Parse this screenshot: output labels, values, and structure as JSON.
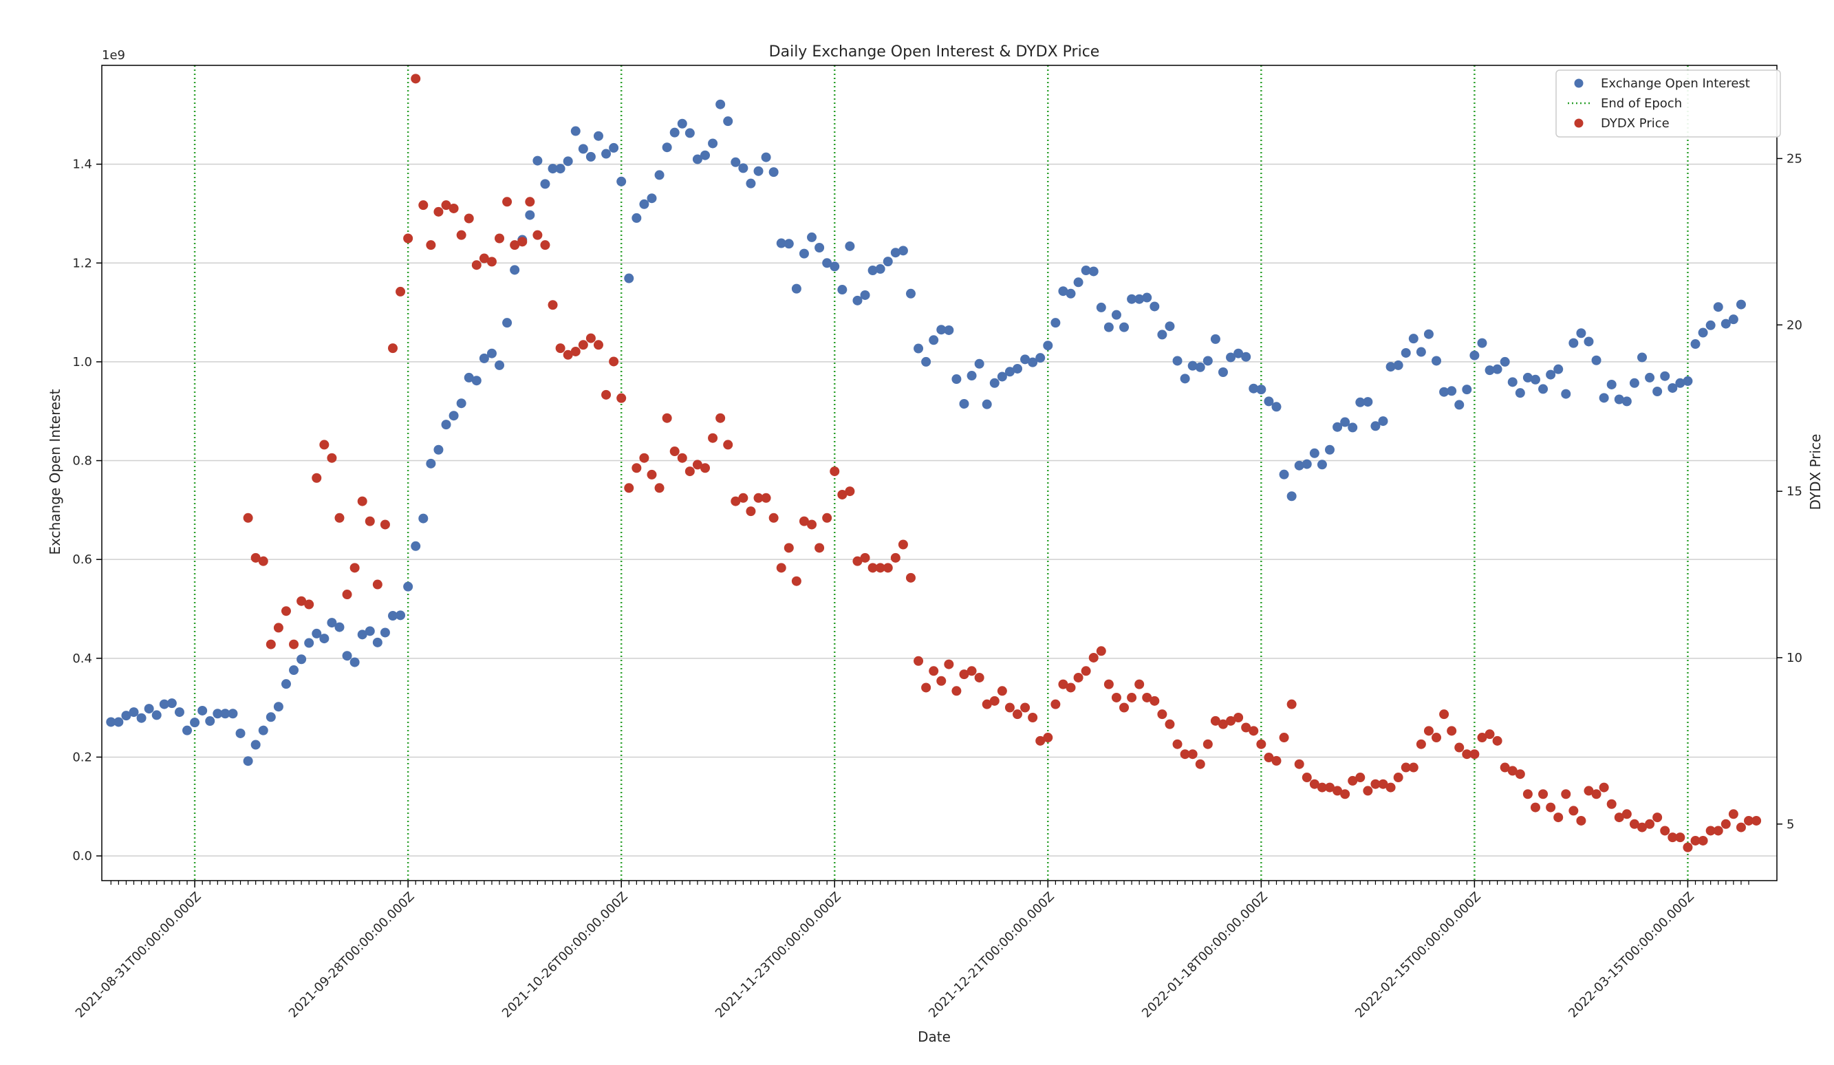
{
  "chart_data": {
    "type": "scatter",
    "title": "Daily Exchange Open Interest & DYDX Price",
    "xlabel": "Date",
    "ylabel_left": "Exchange Open Interest",
    "ylabel_right": "DYDX Price",
    "y_offset_label": "1e9",
    "x_start": "2021-08-20",
    "x_end": "2022-03-23",
    "x_day_range": [
      -1.2,
      218.7
    ],
    "left_ylim": [
      -0.05,
      1.6
    ],
    "right_ylim": [
      3.3,
      27.8
    ],
    "left_ticks": [
      "0.0",
      "0.2",
      "0.4",
      "0.6",
      "0.8",
      "1.0",
      "1.2",
      "1.4"
    ],
    "right_ticks": [
      "5",
      "10",
      "15",
      "20",
      "25"
    ],
    "epoch_dates": [
      "2021-08-31T00:00:00.000Z",
      "2021-09-28T00:00:00.000Z",
      "2021-10-26T00:00:00.000Z",
      "2021-11-23T00:00:00.000Z",
      "2021-12-21T00:00:00.000Z",
      "2022-01-18T00:00:00.000Z",
      "2022-02-15T00:00:00.000Z",
      "2022-03-15T00:00:00.000Z"
    ],
    "grid": "horizontal",
    "legend_position": "top-right",
    "colors": {
      "open_interest": "#4c72b0",
      "epoch": "#2ca02c",
      "price": "#c0392b"
    },
    "legend": [
      {
        "label": "Exchange Open Interest",
        "kind": "marker",
        "color": "#4c72b0"
      },
      {
        "label": "End of Epoch",
        "kind": "dotted-line",
        "color": "#2ca02c"
      },
      {
        "label": "DYDX Price",
        "kind": "marker",
        "color": "#c0392b"
      }
    ],
    "series": [
      {
        "name": "Exchange Open Interest",
        "axis": "left",
        "start_date": "2021-08-20",
        "values": [
          0.271,
          0.271,
          0.284,
          0.291,
          0.279,
          0.298,
          0.285,
          0.307,
          0.309,
          0.291,
          0.254,
          0.27,
          0.294,
          0.273,
          0.288,
          0.288,
          0.288,
          0.248,
          0.192,
          0.225,
          0.254,
          0.281,
          0.302,
          0.348,
          0.376,
          0.398,
          0.431,
          0.45,
          0.44,
          0.472,
          0.463,
          0.405,
          0.392,
          0.448,
          0.455,
          0.432,
          0.452,
          0.486,
          0.487,
          0.545,
          0.627,
          0.683,
          0.794,
          0.822,
          0.873,
          0.891,
          0.916,
          0.968,
          0.962,
          1.007,
          1.017,
          0.993,
          1.079,
          1.186,
          1.247,
          1.297,
          1.407,
          1.36,
          1.391,
          1.391,
          1.406,
          1.467,
          1.431,
          1.415,
          1.457,
          1.421,
          1.433,
          1.365,
          1.169,
          1.291,
          1.319,
          1.331,
          1.378,
          1.434,
          1.464,
          1.482,
          1.463,
          1.41,
          1.418,
          1.442,
          1.521,
          1.487,
          1.404,
          1.392,
          1.361,
          1.386,
          1.414,
          1.384,
          1.24,
          1.239,
          1.148,
          1.219,
          1.252,
          1.231,
          1.2,
          1.193,
          1.146,
          1.234,
          1.124,
          1.135,
          1.185,
          1.188,
          1.203,
          1.221,
          1.225,
          1.138,
          1.027,
          1.0,
          1.044,
          1.065,
          1.064,
          0.965,
          0.915,
          0.972,
          0.996,
          0.914,
          0.957,
          0.97,
          0.98,
          0.986,
          1.005,
          0.999,
          1.008,
          1.033,
          1.079,
          1.143,
          1.138,
          1.161,
          1.185,
          1.183,
          1.11,
          1.07,
          1.095,
          1.07,
          1.127,
          1.127,
          1.13,
          1.112,
          1.055,
          1.072,
          1.002,
          0.966,
          0.992,
          0.989,
          1.002,
          1.046,
          0.979,
          1.009,
          1.017,
          1.01,
          0.946,
          0.944,
          0.92,
          0.909,
          0.772,
          0.728,
          0.79,
          0.793,
          0.815,
          0.792,
          0.822,
          0.868,
          0.878,
          0.867,
          0.918,
          0.919,
          0.87,
          0.88,
          0.99,
          0.993,
          1.018,
          1.047,
          1.02,
          1.056,
          1.002,
          0.939,
          0.941,
          0.913,
          0.944,
          1.013,
          1.038,
          0.983,
          0.985,
          1.0,
          0.959,
          0.937,
          0.968,
          0.964,
          0.945,
          0.974,
          0.985,
          0.935,
          1.038,
          1.058,
          1.041,
          1.003,
          0.927,
          0.954,
          0.924,
          0.92,
          0.957,
          1.009,
          0.968,
          0.94,
          0.971,
          0.947,
          0.957,
          0.961,
          1.036,
          1.059,
          1.074,
          1.111,
          1.077,
          1.086,
          1.116
        ]
      },
      {
        "name": "DYDX Price",
        "axis": "right",
        "start_date": "2021-09-07",
        "values": [
          14.2,
          13.0,
          12.9,
          10.4,
          10.9,
          11.4,
          10.4,
          11.7,
          11.6,
          15.4,
          16.4,
          16.0,
          14.2,
          11.9,
          12.7,
          14.7,
          14.1,
          12.2,
          14.0,
          19.3,
          21.0,
          22.6,
          27.4,
          23.6,
          22.4,
          23.4,
          23.6,
          23.5,
          22.7,
          23.2,
          21.8,
          22.0,
          21.9,
          22.6,
          23.7,
          22.4,
          22.5,
          23.7,
          22.7,
          22.4,
          20.6,
          19.3,
          19.1,
          19.2,
          19.4,
          19.6,
          19.4,
          17.9,
          18.9,
          17.8,
          15.1,
          15.7,
          16.0,
          15.5,
          15.1,
          17.2,
          16.2,
          16.0,
          15.6,
          15.8,
          15.7,
          16.6,
          17.2,
          16.4,
          14.7,
          14.8,
          14.4,
          14.8,
          14.8,
          14.2,
          12.7,
          13.3,
          12.3,
          14.1,
          14.0,
          13.3,
          14.2,
          15.6,
          14.9,
          15.0,
          12.9,
          13.0,
          12.7,
          12.7,
          12.7,
          13.0,
          13.4,
          12.4,
          9.9,
          9.1,
          9.6,
          9.3,
          9.8,
          9.0,
          9.5,
          9.6,
          9.4,
          8.6,
          8.7,
          9.0,
          8.5,
          8.3,
          8.5,
          8.2,
          7.5,
          7.6,
          8.6,
          9.2,
          9.1,
          9.4,
          9.6,
          10.0,
          10.2,
          9.2,
          8.8,
          8.5,
          8.8,
          9.2,
          8.8,
          8.7,
          8.3,
          8.0,
          7.4,
          7.1,
          7.1,
          6.8,
          7.4,
          8.1,
          8.0,
          8.1,
          8.2,
          7.9,
          7.8,
          7.4,
          7.0,
          6.9,
          7.6,
          8.6,
          6.8,
          6.4,
          6.2,
          6.1,
          6.1,
          6.0,
          5.9,
          6.3,
          6.4,
          6.0,
          6.2,
          6.2,
          6.1,
          6.4,
          6.7,
          6.7,
          7.4,
          7.8,
          7.6,
          8.3,
          7.8,
          7.3,
          7.1,
          7.1,
          7.6,
          7.7,
          7.5,
          6.7,
          6.6,
          6.5,
          5.9,
          5.5,
          5.9,
          5.5,
          5.2,
          5.9,
          5.4,
          5.1,
          6.0,
          5.9,
          6.1,
          5.6,
          5.2,
          5.3,
          5.0,
          4.9,
          5.0,
          5.2,
          4.8,
          4.6,
          4.6,
          4.3,
          4.5,
          4.5,
          4.8,
          4.8,
          5.0,
          5.3,
          4.9,
          5.1,
          5.1
        ]
      }
    ]
  }
}
